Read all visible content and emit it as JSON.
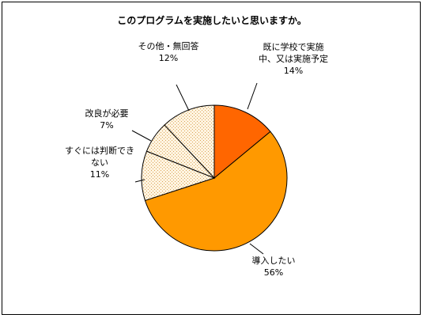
{
  "chart_data": {
    "type": "pie",
    "title": "このプログラムを実施したいと思いますか。",
    "slices": [
      {
        "label_lines": [
          "既に学校で実施",
          "中、又は実施予定"
        ],
        "pct_label": "14%",
        "value": 14,
        "color": "#ff6600",
        "pattern": "solid"
      },
      {
        "label_lines": [
          "導入したい"
        ],
        "pct_label": "56%",
        "value": 56,
        "color": "#ff9900",
        "pattern": "solid"
      },
      {
        "label_lines": [
          "すぐには判断でき",
          "ない"
        ],
        "pct_label": "11%",
        "value": 11,
        "color": "#fff1d6",
        "pattern": "dots"
      },
      {
        "label_lines": [
          "改良が必要"
        ],
        "pct_label": "7%",
        "value": 7,
        "color": "#fff1d6",
        "pattern": "dots"
      },
      {
        "label_lines": [
          "その他・無回答"
        ],
        "pct_label": "12%",
        "value": 12,
        "color": "#fff1d6",
        "pattern": "dots"
      }
    ],
    "legend": "none"
  }
}
